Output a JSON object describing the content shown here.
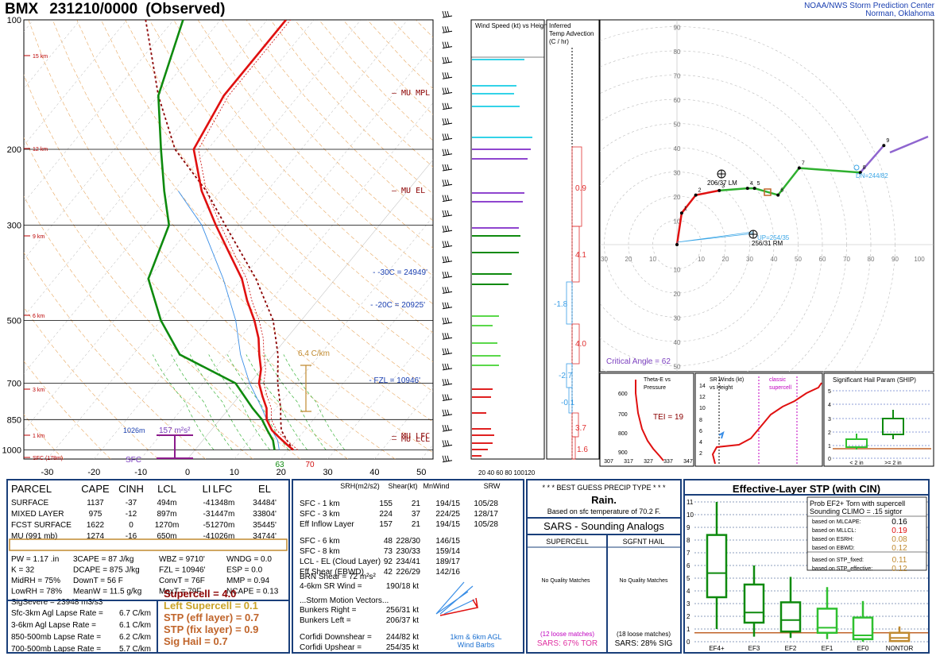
{
  "header": {
    "station": "BMX",
    "datetime": "231210/0000",
    "obs_type": "(Observed)",
    "agency_line1": "NOAA/NWS Storm Prediction Center",
    "agency_line2": "Norman, Oklahoma"
  },
  "skewt": {
    "pressure_labels": [
      "100",
      "200",
      "300",
      "500",
      "700",
      "850",
      "1000"
    ],
    "temp_labels": [
      "-30",
      "-20",
      "-10",
      "0",
      "10",
      "20",
      "30",
      "40",
      "50"
    ],
    "height_labels": [
      "15 km",
      "12 km",
      "9 km",
      "6 km",
      "3 km",
      "1 km",
      "SFC (178m)"
    ],
    "annotations": {
      "mu_mpl": "MU MPL",
      "mu_el": "MU EL",
      "mu_lfc": "MU LFC",
      "mu_lcl": "MU LCL",
      "m30c": "-30C = 24949'",
      "m20c": "-20C = 20925'",
      "fzl": "FZL = 10946'",
      "lapse": "6.4 C/km",
      "sfc": "SFC",
      "p1026": "1026m",
      "cape_box": "157 m²s²",
      "td_surface": "63",
      "t_surface": "70"
    }
  },
  "wind_panel": {
    "title": "Wind Speed (kt) vs Height",
    "axis": "20 40 60 80 100120"
  },
  "adv_panel": {
    "title": "Inferred Temp Advection (C / hr)",
    "values": [
      "0.9",
      "4.1",
      "-1.8",
      "4.0",
      "-2.7",
      "-0.1",
      "3.7",
      "1.6"
    ]
  },
  "hodograph": {
    "ring_labels": [
      "90",
      "80",
      "70",
      "60",
      "50",
      "40",
      "30",
      "20",
      "10"
    ],
    "x_labels": [
      "30",
      "20",
      "10",
      "10",
      "20",
      "30",
      "40",
      "50",
      "60",
      "70",
      "80",
      "90",
      "100"
    ],
    "bottom_labels": [
      "10",
      "20",
      "30",
      "40",
      "50"
    ],
    "point_labels": [
      "1",
      "2",
      "3",
      "4",
      "5",
      "6",
      "7",
      "8",
      "9"
    ],
    "lm": "206/37 LM",
    "rm": "256/31 RM",
    "up": "UP=254/35",
    "dn": "DN=244/82",
    "critical_angle": "Critical Angle = 62"
  },
  "theta_panel": {
    "title": "Theta-E vs Pressure",
    "y_labels": [
      "600",
      "700",
      "800",
      "900"
    ],
    "x_labels": [
      "307",
      "317",
      "327",
      "337",
      "347"
    ],
    "tei": "TEI = 19"
  },
  "srwind_panel": {
    "title": "SR Winds (kt) vs Height",
    "classic": "classic supercell",
    "y_labels": [
      "14",
      "12",
      "10",
      "8",
      "6",
      "4",
      "2"
    ]
  },
  "ship_panel": {
    "title": "Significant Hail Param (SHIP)",
    "y_labels": [
      "5",
      "4",
      "3",
      "2",
      "1",
      "0"
    ],
    "x_labels": [
      "< 2 in",
      ">= 2 in"
    ]
  },
  "parcel_table": {
    "headers": [
      "PARCEL",
      "CAPE",
      "CINH",
      "LCL",
      "LI",
      "LFC",
      "EL"
    ],
    "rows": [
      [
        "SURFACE",
        "1137",
        "-37",
        "494m",
        "-4",
        "1348m",
        "34484'"
      ],
      [
        "MIXED LAYER",
        "975",
        "-12",
        "897m",
        "-3",
        "1447m",
        "33804'"
      ],
      [
        "FCST SURFACE",
        "1622",
        "0",
        "1270m",
        "-5",
        "1270m",
        "35445'"
      ],
      [
        "MU   (991 mb)",
        "1274",
        "-16",
        "650m",
        "-4",
        "1026m",
        "34744'"
      ]
    ],
    "indices_left": [
      "PW = 1.17 .in",
      "K = 32",
      "MidRH = 75%",
      "LowRH = 78%",
      "SigSevere = 23948 m3/s3"
    ],
    "indices_mid": [
      "3CAPE = 87 J/kg",
      "DCAPE = 875 J/kg",
      "DownT = 56 F",
      "MeanW = 11.5 g/kg"
    ],
    "indices_mid2": [
      "WBZ = 9710'",
      "FZL = 10946'",
      "ConvT = 76F",
      "MaxT = 79F"
    ],
    "indices_right": [
      "WNDG = 0.0",
      "ESP = 0.0",
      "MMP = 0.94",
      "NCAPE = 0.13"
    ],
    "lapse_rates": [
      [
        "Sfc-3km Agl Lapse Rate =",
        "6.7 C/km"
      ],
      [
        "3-6km Agl Lapse Rate =",
        "6.1 C/km"
      ],
      [
        "850-500mb Lapse Rate =",
        "6.2 C/km"
      ],
      [
        "700-500mb Lapse Rate =",
        "5.7 C/km"
      ]
    ],
    "params": [
      {
        "label": "Supercell = 4.0",
        "color": "#8b0000"
      },
      {
        "label": "Left Supercell = 0.1",
        "color": "#c9a227"
      },
      {
        "label": "STP (eff layer) = 0.7",
        "color": "#c0642a"
      },
      {
        "label": "STP (fix layer) = 0.9",
        "color": "#c0642a"
      },
      {
        "label": "Sig Hail = 0.7",
        "color": "#c0642a"
      }
    ]
  },
  "kinematic_table": {
    "headers": [
      "SRH(m2/s2)",
      "Shear(kt)",
      "MnWind",
      "SRW"
    ],
    "rows": [
      [
        "SFC - 1 km",
        "155",
        "21",
        "194/15",
        "105/28"
      ],
      [
        "SFC - 3 km",
        "224",
        "37",
        "224/25",
        "128/17"
      ],
      [
        "Eff Inflow Layer",
        "157",
        "21",
        "194/15",
        "105/28"
      ],
      [
        "SFC - 6 km",
        "48",
        "228/30",
        "146/15",
        ""
      ],
      [
        "SFC - 8 km",
        "73",
        "230/33",
        "159/14",
        ""
      ],
      [
        "LCL - EL (Cloud Layer)",
        "92",
        "234/41",
        "189/17",
        ""
      ],
      [
        "Eff Shear (EBWD)",
        "42",
        "226/29",
        "142/16",
        ""
      ]
    ],
    "brn": "BRN Shear =  72 m²s²",
    "srw": "4-6km SR Wind =",
    "srw_val": "190/18 kt",
    "storm_title": "...Storm Motion Vectors...",
    "motions": [
      [
        "Bunkers Right =",
        "256/31 kt"
      ],
      [
        "Bunkers Left =",
        "206/37 kt"
      ],
      [
        "Corfidi Downshear =",
        "244/82 kt"
      ],
      [
        "Corfidi Upshear =",
        "254/35 kt"
      ]
    ],
    "agl": "1km & 6km AGL",
    "barbs": "Wind Barbs"
  },
  "precip": {
    "title": "* * * BEST GUESS PRECIP TYPE * * *",
    "type": "Rain.",
    "basis": "Based on sfc temperature of 70.2 F."
  },
  "sars": {
    "title": "SARS - Sounding Analogs",
    "col1": "SUPERCELL",
    "col2": "SGFNT HAIL",
    "nq": "No Quality Matches",
    "loose1": "(12 loose matches)",
    "loose2": "(18 loose matches)",
    "pct1": "SARS:  67% TOR",
    "pct2": "SARS:  28% SIG"
  },
  "stp": {
    "title": "Effective-Layer STP (with CIN)",
    "prob_title": "Prob EF2+ Torn with supercell",
    "climo": "Sounding CLIMO = .15 sigtor",
    "rows": [
      [
        "based on MLCAPE:",
        "0.16"
      ],
      [
        "based on MLLCL:",
        "0.19"
      ],
      [
        "based on ESRH:",
        "0.08"
      ],
      [
        "based on EBWD:",
        "0.12"
      ],
      [
        "based on STP_fixed:",
        "0.11"
      ],
      [
        "based on STP_effective:",
        "0.12"
      ]
    ],
    "y_labels": [
      "11",
      "10",
      "9",
      "8",
      "7",
      "6",
      "5",
      "4",
      "3",
      "2",
      "1",
      "0"
    ],
    "x_labels": [
      "EF4+",
      "EF3",
      "EF2",
      "EF1",
      "EF0",
      "NONTOR"
    ]
  },
  "chart_data": [
    {
      "type": "line",
      "title": "Skew-T log-P",
      "xlabel": "",
      "ylabel": "",
      "y_pressure_levels": [
        100,
        200,
        300,
        500,
        700,
        850,
        1000
      ],
      "x_temps": [
        -30,
        -20,
        -10,
        0,
        10,
        20,
        30,
        40,
        50
      ],
      "series": [
        {
          "name": "Temperature",
          "pressure": [
            1000,
            975,
            950,
            925,
            900,
            850,
            800,
            750,
            700,
            650,
            600,
            550,
            500,
            450,
            400,
            350,
            300,
            250,
            200,
            150,
            100
          ],
          "temp_c": [
            21,
            19,
            17,
            15,
            13,
            10,
            8,
            5,
            2,
            0,
            -3,
            -6,
            -10,
            -15,
            -20,
            -27,
            -35,
            -44,
            -53,
            -56,
            -56
          ]
        },
        {
          "name": "Dewpoint",
          "pressure": [
            1000,
            950,
            900,
            850,
            800,
            700,
            600,
            500,
            400,
            300,
            250,
            200,
            150,
            100
          ],
          "temp_c": [
            17,
            15,
            12,
            9,
            5,
            -3,
            -20,
            -30,
            -40,
            -45,
            -52,
            -60,
            -70,
            -78
          ]
        }
      ]
    },
    {
      "type": "line",
      "title": "Hodograph",
      "xlabel": "",
      "ylabel": "",
      "u_kt": [
        0,
        2,
        8,
        18,
        30,
        33,
        43,
        52,
        78,
        88
      ],
      "v_kt": [
        0,
        14,
        22,
        24,
        25,
        25,
        22,
        34,
        32,
        44
      ]
    },
    {
      "type": "bar",
      "title": "Effective-Layer STP (with CIN)",
      "categories": [
        "EF4+",
        "EF3",
        "EF2",
        "EF1",
        "EF0",
        "NONTOR"
      ],
      "values": [
        5.4,
        2.3,
        1.7,
        1.1,
        0.5,
        0.1
      ]
    }
  ]
}
